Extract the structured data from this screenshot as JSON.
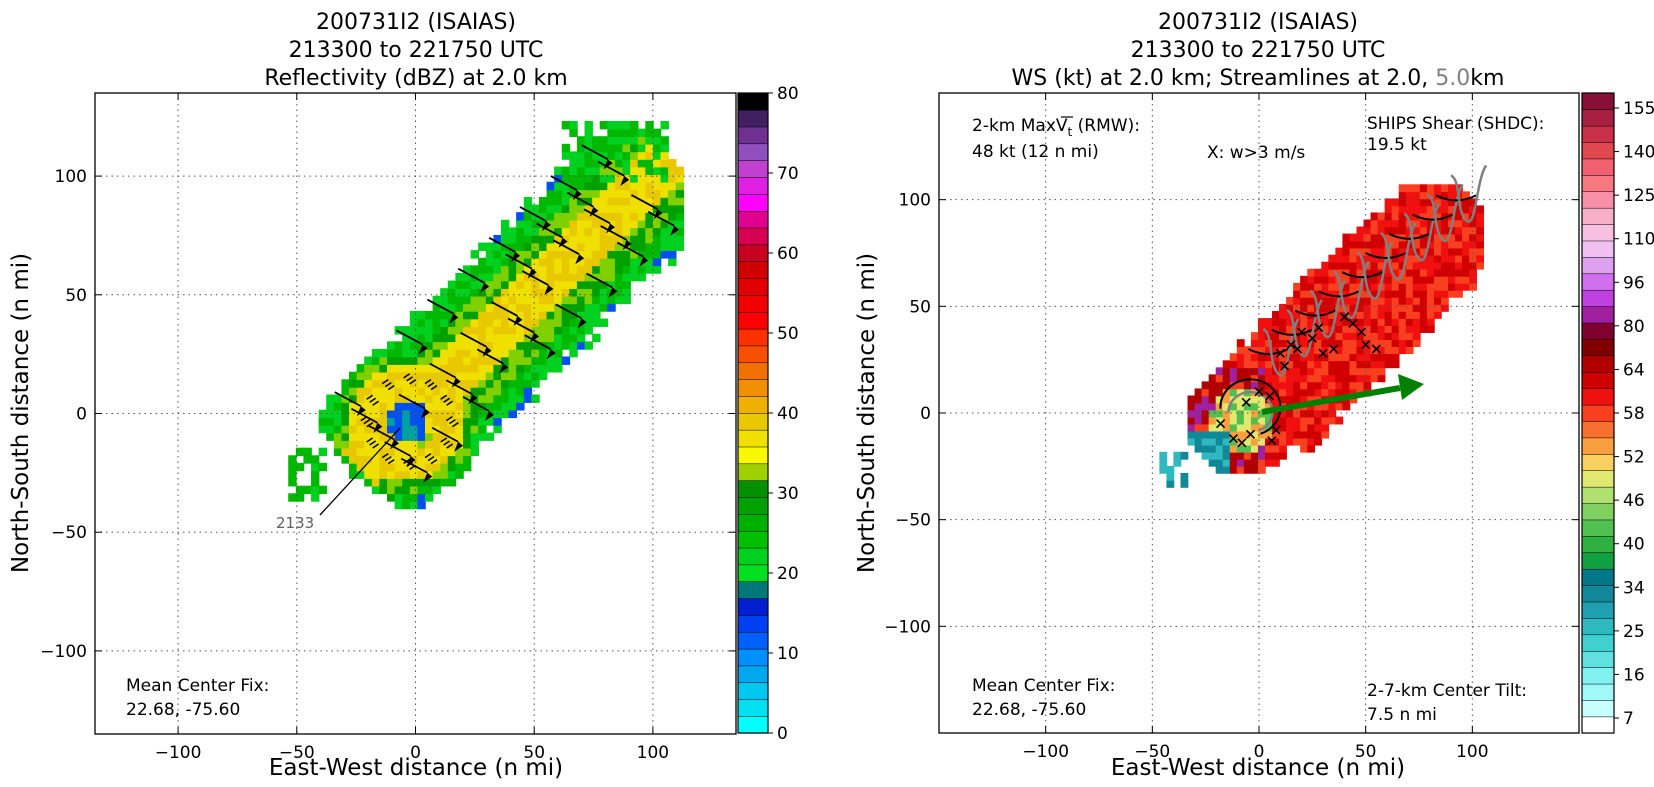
{
  "chart_data": [
    {
      "type": "heatmap",
      "title": [
        "200731I2 (ISAIAS)",
        "213300 to 221750 UTC",
        "Reflectivity (dBZ) at 2.0 km"
      ],
      "xlabel": "East-West distance (n mi)",
      "ylabel": "North-South distance (n mi)",
      "xlim": [
        -135,
        135
      ],
      "ylim": [
        -135,
        135
      ],
      "xticks": [
        -100,
        -50,
        0,
        50,
        100
      ],
      "yticks": [
        -100,
        -50,
        0,
        50,
        100
      ],
      "xtick_labels": [
        "−100",
        "−50",
        "0",
        "50",
        "100"
      ],
      "ytick_labels": [
        "−100",
        "−50",
        "0",
        "50",
        "100"
      ],
      "grid": true,
      "colorbar": {
        "min": 0,
        "max": 80,
        "ticks": [
          "0",
          "10",
          "20",
          "30",
          "40",
          "50",
          "60",
          "70",
          "80"
        ],
        "colors": [
          "#00ffff",
          "#00e0f0",
          "#00c8f0",
          "#00a8f0",
          "#0090ff",
          "#0060ff",
          "#0040f0",
          "#0020d0",
          "#007878",
          "#00e020",
          "#00d020",
          "#00c000",
          "#00b000",
          "#00a000",
          "#009000",
          "#a0d000",
          "#f8f800",
          "#f0e000",
          "#e8c800",
          "#f0b000",
          "#f09000",
          "#f07000",
          "#f85000",
          "#ff3000",
          "#ff0000",
          "#f00000",
          "#e00000",
          "#d00000",
          "#c80020",
          "#d80050",
          "#e00090",
          "#ff00ff",
          "#e020e0",
          "#c040d0",
          "#9050c0",
          "#703090",
          "#402060",
          "#000000"
        ]
      },
      "annotations": {
        "center_fix_label": "Mean Center Fix:",
        "center_fix_value": "22.68, -75.60",
        "track_time": "2133"
      }
    },
    {
      "type": "heatmap",
      "title": [
        "200731I2 (ISAIAS)",
        "213300 to 221750 UTC",
        "WS (kt) at 2.0 km; Streamlines at 2.0,",
        "5.0",
        "km"
      ],
      "xlabel": "East-West distance (n mi)",
      "ylabel": "North-South distance (n mi)",
      "xlim": [
        -150,
        150
      ],
      "ylim": [
        -150,
        150
      ],
      "xticks": [
        -100,
        -50,
        0,
        50,
        100
      ],
      "yticks": [
        -100,
        -50,
        0,
        50,
        100
      ],
      "xtick_labels": [
        "−100",
        "−50",
        "0",
        "50",
        "100"
      ],
      "ytick_labels": [
        "−100",
        "−50",
        "0",
        "50",
        "100"
      ],
      "grid": true,
      "colorbar": {
        "ticks": [
          "7",
          "16",
          "25",
          "34",
          "40",
          "46",
          "52",
          "58",
          "64",
          "80",
          "96",
          "110",
          "125",
          "140",
          "155"
        ],
        "colors": [
          "#ffffff",
          "#c8ffff",
          "#a0f8f8",
          "#80f0f0",
          "#60e0e0",
          "#40d0d0",
          "#30b8c0",
          "#20a0b0",
          "#108898",
          "#007888",
          "#10a040",
          "#30b040",
          "#50c050",
          "#80d060",
          "#b0e070",
          "#e0e870",
          "#f8d060",
          "#f8a040",
          "#f87030",
          "#f84020",
          "#f01010",
          "#d00000",
          "#b00000",
          "#800000",
          "#800030",
          "#a020a0",
          "#c040e0",
          "#d070f0",
          "#e0a0f0",
          "#f0c0f0",
          "#f8c0e0",
          "#f8b0c8",
          "#f890a8",
          "#f87880",
          "#f06070",
          "#e04850",
          "#c83048",
          "#a82040",
          "#881038"
        ]
      },
      "annotations": {
        "maxvt_label": "2-km MaxV",
        "maxvt_sub": "t",
        "maxvt_suffix": " (RMW):",
        "maxvt_value": "48 kt (12 n mi)",
        "updraft_marker": "X: w>3 m/s",
        "shear_label": "SHIPS Shear (SHDC):",
        "shear_value": "19.5 kt",
        "center_fix_label": "Mean Center Fix:",
        "center_fix_value": "22.68, -75.60",
        "tilt_label": "2-7-km Center Tilt:",
        "tilt_value": "7.5 n mi"
      }
    }
  ],
  "colors": {
    "shear_text": "#008000",
    "tilt_text": "#ff0000",
    "shear_arrow": "#008000",
    "streamline_5km": "#808080",
    "track_label": "#606060"
  }
}
